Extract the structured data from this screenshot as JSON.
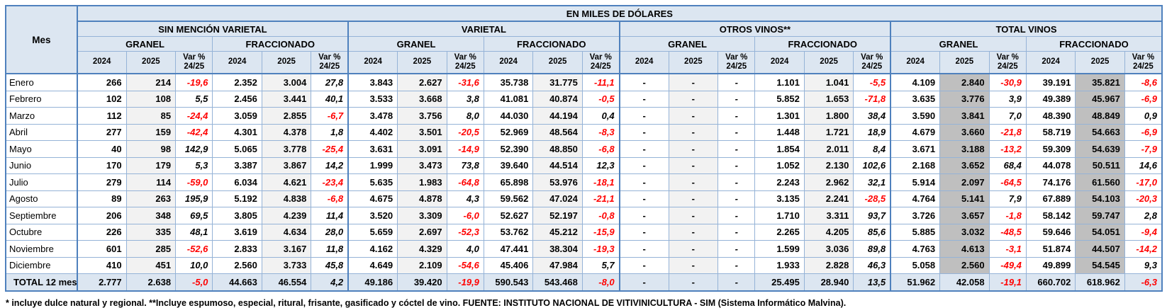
{
  "table": {
    "title": "EN MILES DE DÓLARES",
    "mes_header": "Mes",
    "groups": [
      {
        "label": "SIN MENCIÓN VARIETAL"
      },
      {
        "label": "VARIETAL"
      },
      {
        "label": "OTROS VINOS**"
      },
      {
        "label": "TOTAL VINOS"
      }
    ],
    "subgroup_labels": [
      "GRANEL",
      "FRACCIONADO"
    ],
    "col_headers": {
      "y2024": "2024",
      "y2025": "2025",
      "var_line1": "Var %",
      "var_line2": "24/25"
    },
    "rows": [
      {
        "mes": "Enero",
        "values": [
          "266",
          "214",
          "-19,6",
          "2.352",
          "3.004",
          "27,8",
          "3.843",
          "2.627",
          "-31,6",
          "35.738",
          "31.775",
          "-11,1",
          "-",
          "-",
          "-",
          "1.101",
          "1.041",
          "-5,5",
          "4.109",
          "2.840",
          "-30,9",
          "39.191",
          "35.821",
          "-8,6"
        ]
      },
      {
        "mes": "Febrero",
        "values": [
          "102",
          "108",
          "5,5",
          "2.456",
          "3.441",
          "40,1",
          "3.533",
          "3.668",
          "3,8",
          "41.081",
          "40.874",
          "-0,5",
          "-",
          "-",
          "-",
          "5.852",
          "1.653",
          "-71,8",
          "3.635",
          "3.776",
          "3,9",
          "49.389",
          "45.967",
          "-6,9"
        ]
      },
      {
        "mes": "Marzo",
        "values": [
          "112",
          "85",
          "-24,4",
          "3.059",
          "2.855",
          "-6,7",
          "3.478",
          "3.756",
          "8,0",
          "44.030",
          "44.194",
          "0,4",
          "-",
          "-",
          "-",
          "1.301",
          "1.800",
          "38,4",
          "3.590",
          "3.841",
          "7,0",
          "48.390",
          "48.849",
          "0,9"
        ]
      },
      {
        "mes": "Abril",
        "values": [
          "277",
          "159",
          "-42,4",
          "4.301",
          "4.378",
          "1,8",
          "4.402",
          "3.501",
          "-20,5",
          "52.969",
          "48.564",
          "-8,3",
          "-",
          "-",
          "-",
          "1.448",
          "1.721",
          "18,9",
          "4.679",
          "3.660",
          "-21,8",
          "58.719",
          "54.663",
          "-6,9"
        ]
      },
      {
        "mes": "Mayo",
        "values": [
          "40",
          "98",
          "142,9",
          "5.065",
          "3.778",
          "-25,4",
          "3.631",
          "3.091",
          "-14,9",
          "52.390",
          "48.850",
          "-6,8",
          "-",
          "-",
          "-",
          "1.854",
          "2.011",
          "8,4",
          "3.671",
          "3.188",
          "-13,2",
          "59.309",
          "54.639",
          "-7,9"
        ]
      },
      {
        "mes": "Junio",
        "values": [
          "170",
          "179",
          "5,3",
          "3.387",
          "3.867",
          "14,2",
          "1.999",
          "3.473",
          "73,8",
          "39.640",
          "44.514",
          "12,3",
          "-",
          "-",
          "-",
          "1.052",
          "2.130",
          "102,6",
          "2.168",
          "3.652",
          "68,4",
          "44.078",
          "50.511",
          "14,6"
        ]
      },
      {
        "mes": "Julio",
        "values": [
          "279",
          "114",
          "-59,0",
          "6.034",
          "4.621",
          "-23,4",
          "5.635",
          "1.983",
          "-64,8",
          "65.898",
          "53.976",
          "-18,1",
          "-",
          "-",
          "-",
          "2.243",
          "2.962",
          "32,1",
          "5.914",
          "2.097",
          "-64,5",
          "74.176",
          "61.560",
          "-17,0"
        ]
      },
      {
        "mes": "Agosto",
        "values": [
          "89",
          "263",
          "195,9",
          "5.192",
          "4.838",
          "-6,8",
          "4.675",
          "4.878",
          "4,3",
          "59.562",
          "47.024",
          "-21,1",
          "-",
          "-",
          "-",
          "3.135",
          "2.241",
          "-28,5",
          "4.764",
          "5.141",
          "7,9",
          "67.889",
          "54.103",
          "-20,3"
        ]
      },
      {
        "mes": "Septiembre",
        "values": [
          "206",
          "348",
          "69,5",
          "3.805",
          "4.239",
          "11,4",
          "3.520",
          "3.309",
          "-6,0",
          "52.627",
          "52.197",
          "-0,8",
          "-",
          "-",
          "-",
          "1.710",
          "3.311",
          "93,7",
          "3.726",
          "3.657",
          "-1,8",
          "58.142",
          "59.747",
          "2,8"
        ]
      },
      {
        "mes": "Octubre",
        "values": [
          "226",
          "335",
          "48,1",
          "3.619",
          "4.634",
          "28,0",
          "5.659",
          "2.697",
          "-52,3",
          "53.762",
          "45.212",
          "-15,9",
          "-",
          "-",
          "-",
          "2.265",
          "4.205",
          "85,6",
          "5.885",
          "3.032",
          "-48,5",
          "59.646",
          "54.051",
          "-9,4"
        ]
      },
      {
        "mes": "Noviembre",
        "values": [
          "601",
          "285",
          "-52,6",
          "2.833",
          "3.167",
          "11,8",
          "4.162",
          "4.329",
          "4,0",
          "47.441",
          "38.304",
          "-19,3",
          "-",
          "-",
          "-",
          "1.599",
          "3.036",
          "89,8",
          "4.763",
          "4.613",
          "-3,1",
          "51.874",
          "44.507",
          "-14,2"
        ]
      },
      {
        "mes": "Diciembre",
        "values": [
          "410",
          "451",
          "10,0",
          "2.560",
          "3.733",
          "45,8",
          "4.649",
          "2.109",
          "-54,6",
          "45.406",
          "47.984",
          "5,7",
          "-",
          "-",
          "-",
          "1.933",
          "2.828",
          "46,3",
          "5.058",
          "2.560",
          "-49,4",
          "49.899",
          "54.545",
          "9,3"
        ]
      }
    ],
    "total_row": {
      "mes": "TOTAL 12 meses",
      "values": [
        "2.777",
        "2.638",
        "-5,0",
        "44.663",
        "46.554",
        "4,2",
        "49.186",
        "39.420",
        "-19,9",
        "590.543",
        "543.468",
        "-8,0",
        "-",
        "-",
        "-",
        "25.495",
        "28.940",
        "13,5",
        "51.962",
        "42.058",
        "-19,1",
        "660.702",
        "618.962",
        "-6,3"
      ]
    }
  },
  "footnote": "* incluye dulce natural y regional. **Incluye espumoso, especial, ritural, frisante, gasificado y cóctel de vino. FUENTE: INSTITUTO NACIONAL DE VITIVINICULTURA - SIM (Sistema Informático Malvina).",
  "colors": {
    "header_fill": "#DCE6F1",
    "grid": "#95B3D7",
    "grid_strong": "#4F81BD",
    "negative_value": "#FF0000",
    "shade_2025": "#F2F2F2",
    "shade_total_2025": "#BFBFBF"
  }
}
